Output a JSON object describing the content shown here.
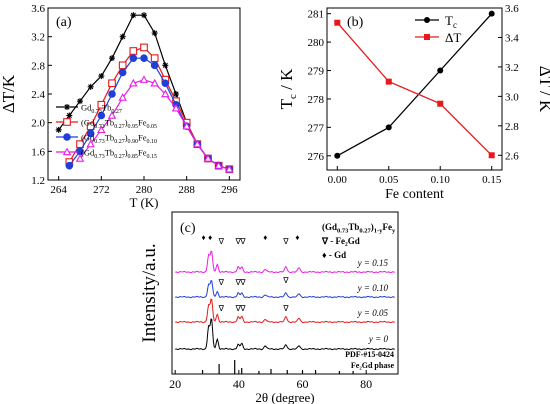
{
  "chart_data": [
    {
      "panel": "(a)",
      "type": "line",
      "xlabel": "T (K)",
      "ylabel": "ΔT/K",
      "xlim": [
        262,
        298
      ],
      "ylim": [
        1.2,
        3.6
      ],
      "xticks": [
        264,
        272,
        280,
        288,
        296
      ],
      "yticks": [
        1.2,
        1.6,
        2.0,
        2.4,
        2.8,
        3.2,
        3.6
      ],
      "legend_position": "bottom-left",
      "series": [
        {
          "legend_base": "Gd",
          "legend_sub1": "0.73",
          "legend_mid": "Tb",
          "legend_sub2": "0.27",
          "legend_tail": "",
          "legend_sub3": "",
          "color": "#000000",
          "marker": "star",
          "x": [
            264,
            266,
            268,
            270,
            272,
            274,
            276,
            278,
            280,
            282,
            284,
            286,
            288,
            290,
            292,
            294,
            296
          ],
          "y": [
            1.9,
            2.1,
            2.3,
            2.5,
            2.65,
            2.9,
            3.2,
            3.5,
            3.5,
            3.25,
            2.8,
            2.4,
            2.0,
            1.7,
            1.5,
            1.4,
            1.35
          ]
        },
        {
          "legend_base": "(Gd",
          "legend_sub1": "0.73",
          "legend_mid": "Tb",
          "legend_sub2": "0.27",
          "legend_tail": ")",
          "legend_sub3": "0.95",
          "legend_end": "Fe",
          "legend_sub4": "0.05",
          "color": "#e41a1c",
          "marker": "square",
          "x": [
            266,
            268,
            270,
            272,
            274,
            276,
            278,
            280,
            282,
            284,
            286,
            288,
            290,
            292,
            294,
            296
          ],
          "y": [
            1.45,
            1.7,
            1.95,
            2.25,
            2.55,
            2.8,
            3.0,
            3.05,
            2.9,
            2.6,
            2.3,
            2.0,
            1.7,
            1.5,
            1.4,
            1.35
          ]
        },
        {
          "legend_base": "(Gd",
          "legend_sub1": "0.73",
          "legend_mid": "Tb",
          "legend_sub2": "0.27",
          "legend_tail": ")",
          "legend_sub3": "0.90",
          "legend_end": "Fe",
          "legend_sub4": "0.10",
          "color": "#1f3fd6",
          "marker": "circle",
          "x": [
            266,
            268,
            270,
            272,
            274,
            276,
            278,
            280,
            282,
            284,
            286,
            288,
            290,
            292,
            294,
            296
          ],
          "y": [
            1.4,
            1.6,
            1.85,
            2.1,
            2.4,
            2.7,
            2.9,
            2.9,
            2.8,
            2.55,
            2.25,
            1.95,
            1.7,
            1.5,
            1.4,
            1.35
          ]
        },
        {
          "legend_base": "(Gd",
          "legend_sub1": "0.73",
          "legend_mid": "Tb",
          "legend_sub2": "0.27",
          "legend_tail": ")",
          "legend_sub3": "0.85",
          "legend_end": "Fe",
          "legend_sub4": "0.15",
          "color": "#e81ce8",
          "marker": "triangle",
          "x": [
            268,
            270,
            272,
            274,
            276,
            278,
            280,
            282,
            284,
            286,
            288,
            290,
            292,
            294,
            296
          ],
          "y": [
            1.5,
            1.7,
            1.9,
            2.1,
            2.35,
            2.55,
            2.6,
            2.55,
            2.4,
            2.2,
            1.95,
            1.7,
            1.5,
            1.4,
            1.35
          ]
        }
      ]
    },
    {
      "panel": "(b)",
      "type": "line",
      "xlabel": "Fe content",
      "ylabel_left_main": "T",
      "ylabel_left_sub": "c",
      "ylabel_left_tail": " / K",
      "ylabel_right": "ΔT / K",
      "xlim": [
        -0.01,
        0.16
      ],
      "ylim_left": [
        275.5,
        281.2
      ],
      "ylim_right": [
        2.5,
        3.6
      ],
      "xticks": [
        "0.00",
        "0.05",
        "0.10",
        "0.15"
      ],
      "yticks_left": [
        276,
        277,
        278,
        279,
        280,
        281
      ],
      "yticks_right": [
        "2.6",
        "2.8",
        "3.0",
        "3.2",
        "3.4",
        "3.6"
      ],
      "legend_position": "top-right",
      "series": [
        {
          "legend_main": "T",
          "legend_sub": "c",
          "color": "#000000",
          "marker": "circle",
          "axis": "left",
          "x": [
            0.0,
            0.05,
            0.1,
            0.15
          ],
          "y": [
            276,
            277,
            279,
            281
          ]
        },
        {
          "legend_main": "ΔT",
          "legend_sub": "",
          "color": "#e41a1c",
          "marker": "square",
          "axis": "right",
          "x": [
            0.0,
            0.05,
            0.1,
            0.15
          ],
          "y": [
            3.5,
            3.1,
            2.95,
            2.6
          ]
        }
      ]
    },
    {
      "panel": "(c)",
      "type": "line",
      "xlabel": "2θ (degree)",
      "ylabel": "Intensity/a.u.",
      "xlim": [
        19,
        90
      ],
      "xticks": [
        20,
        40,
        60,
        80
      ],
      "title_parts": [
        "(Gd",
        "0.73",
        "Tb",
        "0.27",
        ")",
        "1-y",
        "Fe",
        "y"
      ],
      "legend_fe2gd": "∇ - Fe₂Gd",
      "legend_gd": "♦ - Gd",
      "reference_label_1": "PDF-#15-0424",
      "reference_label_2": "Fe₂Gd phase",
      "reference_peaks": [
        28.6,
        33.8,
        38.7,
        40.9,
        46.3,
        50.1,
        55.2,
        60.0,
        64.1,
        71.6,
        75.9
      ],
      "series": [
        {
          "label": "y = 0",
          "color": "#000000",
          "peaks": [
            [
              30.5,
              40
            ],
            [
              31.4,
              55
            ],
            [
              33.2,
              18
            ],
            [
              39.8,
              8
            ],
            [
              40.9,
              10
            ],
            [
              48.3,
              6
            ],
            [
              54.8,
              8
            ],
            [
              58.9,
              6
            ]
          ]
        },
        {
          "label": "y = 0.05",
          "color": "#e41a1c",
          "peaks": [
            [
              30.5,
              30
            ],
            [
              31.4,
              42
            ],
            [
              33.2,
              14
            ],
            [
              39.8,
              9
            ],
            [
              40.9,
              10
            ],
            [
              48.3,
              5
            ],
            [
              54.8,
              10
            ],
            [
              58.9,
              7
            ]
          ]
        },
        {
          "label": "y = 0.10",
          "color": "#1f3fd6",
          "peaks": [
            [
              30.5,
              22
            ],
            [
              31.4,
              30
            ],
            [
              33.2,
              10
            ],
            [
              39.8,
              7
            ],
            [
              40.9,
              7
            ],
            [
              48.3,
              4
            ],
            [
              54.8,
              8
            ],
            [
              58.9,
              6
            ]
          ]
        },
        {
          "label": "y = 0.15",
          "color": "#e81ce8",
          "peaks": [
            [
              30.5,
              30
            ],
            [
              31.4,
              38
            ],
            [
              33.2,
              14
            ],
            [
              39.8,
              9
            ],
            [
              40.9,
              9
            ],
            [
              48.3,
              5
            ],
            [
              54.8,
              10
            ],
            [
              58.9,
              8
            ]
          ]
        }
      ],
      "markers_top": [
        {
          "x": 28.9,
          "symbol": "♦"
        },
        {
          "x": 31.0,
          "symbol": "♦"
        },
        {
          "x": 34.5,
          "symbol": "∇"
        },
        {
          "x": 39.8,
          "symbol": "∇"
        },
        {
          "x": 41.3,
          "symbol": "∇"
        },
        {
          "x": 48.3,
          "symbol": "♦"
        },
        {
          "x": 54.8,
          "symbol": "∇"
        },
        {
          "x": 58.4,
          "symbol": "♦"
        }
      ]
    }
  ]
}
